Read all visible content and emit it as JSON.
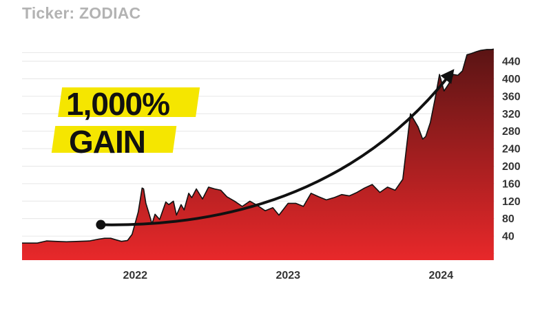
{
  "ticker_label": "Ticker: ZODIAC",
  "callout": {
    "line1": "1,000%",
    "line2": "GAIN",
    "highlight_color": "#f5e600"
  },
  "colors": {
    "area_top": "#5a1414",
    "area_bottom": "#e8282a",
    "line": "#111111",
    "grid": "#e6e6e6",
    "axis_text": "#333333"
  },
  "chart_data": {
    "type": "area",
    "title": "",
    "xlabel": "",
    "ylabel": "",
    "y_axis_side": "right",
    "ylim": [
      -15,
      470
    ],
    "xlim": [
      2021.26,
      2024.35
    ],
    "yticks": [
      40,
      80,
      120,
      160,
      200,
      240,
      280,
      320,
      360,
      400,
      440
    ],
    "xticks": [
      {
        "label": "2022",
        "x": 2022.0
      },
      {
        "label": "2023",
        "x": 2023.0
      },
      {
        "label": "2024",
        "x": 2024.0
      }
    ],
    "grid": true,
    "series": [
      {
        "x": [
          2021.26,
          2021.36,
          2021.42,
          2021.48,
          2021.55,
          2021.63,
          2021.7,
          2021.76,
          2021.8,
          2021.84,
          2021.87,
          2021.91,
          2021.95,
          2021.98,
          2022.02,
          2022.045,
          2022.055,
          2022.07,
          2022.09,
          2022.11,
          2022.13,
          2022.16,
          2022.2,
          2022.22,
          2022.25,
          2022.27,
          2022.3,
          2022.32,
          2022.35,
          2022.37,
          2022.4,
          2022.44,
          2022.48,
          2022.52,
          2022.56,
          2022.6,
          2022.65,
          2022.7,
          2022.75,
          2022.8,
          2022.85,
          2022.9,
          2022.94,
          2023.0,
          2023.05,
          2023.1,
          2023.15,
          2023.2,
          2023.25,
          2023.3,
          2023.35,
          2023.4,
          2023.45,
          2023.5,
          2023.55,
          2023.6,
          2023.65,
          2023.7,
          2023.75,
          2023.8,
          2023.85,
          2023.88,
          2023.9,
          2023.93,
          2023.96,
          2023.99,
          2024.02,
          2024.05,
          2024.08,
          2024.11,
          2024.14,
          2024.17,
          2024.2,
          2024.23,
          2024.26,
          2024.28,
          2024.3,
          2024.31,
          2024.33,
          2024.345
        ],
        "y": [
          24,
          24,
          29,
          28,
          27,
          28,
          29,
          33,
          35,
          35,
          32,
          28,
          30,
          44,
          95,
          150,
          148,
          115,
          92,
          68,
          90,
          78,
          118,
          112,
          120,
          88,
          112,
          100,
          138,
          128,
          148,
          125,
          152,
          148,
          145,
          130,
          120,
          108,
          120,
          110,
          98,
          105,
          88,
          115,
          115,
          108,
          138,
          130,
          123,
          128,
          135,
          132,
          140,
          150,
          158,
          140,
          152,
          145,
          170,
          320,
          290,
          262,
          268,
          300,
          352,
          410,
          372,
          388,
          410,
          408,
          418,
          455,
          458,
          462,
          465,
          466,
          467,
          467,
          467,
          468
        ]
      }
    ],
    "annotation": {
      "type": "arrow",
      "from": [
        2021.775,
        66
      ],
      "to": [
        2024.07,
        415
      ]
    }
  }
}
